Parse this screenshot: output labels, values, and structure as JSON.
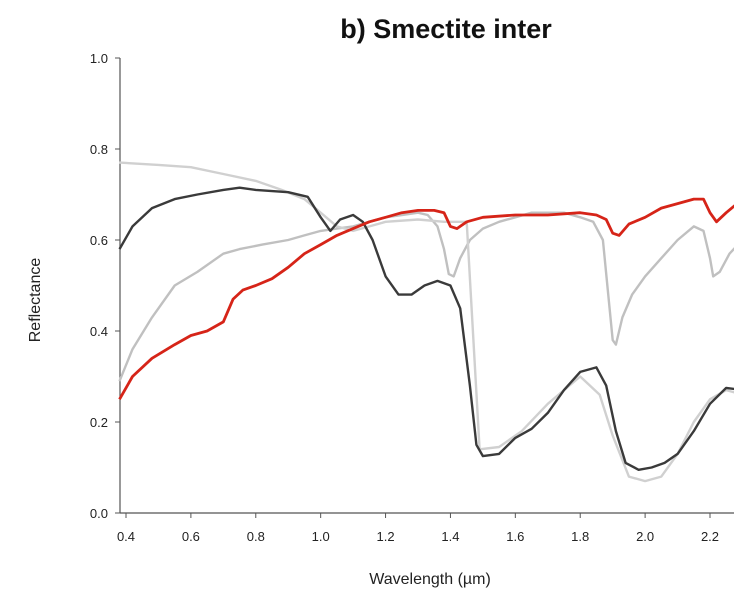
{
  "chart_data": {
    "type": "line",
    "title": "b) Smectite inter",
    "xlabel": "Wavelength (µm)",
    "ylabel": "Reflectance",
    "xlim": [
      0.38,
      2.35
    ],
    "ylim": [
      0.0,
      1.0
    ],
    "x_ticks": [
      "0.4",
      "0.6",
      "0.8",
      "1.0",
      "1.2",
      "1.4",
      "1.6",
      "1.8",
      "2.0",
      "2.2"
    ],
    "y_ticks": [
      "0.0",
      "0.2",
      "0.4",
      "0.6",
      "0.8",
      "1.0"
    ],
    "grid": false,
    "legend": "none",
    "series": [
      {
        "color": "#c0c0c0",
        "points": [
          [
            0.38,
            0.29
          ],
          [
            0.42,
            0.36
          ],
          [
            0.48,
            0.43
          ],
          [
            0.55,
            0.5
          ],
          [
            0.62,
            0.53
          ],
          [
            0.7,
            0.57
          ],
          [
            0.75,
            0.58
          ],
          [
            0.82,
            0.59
          ],
          [
            0.9,
            0.6
          ],
          [
            0.95,
            0.61
          ],
          [
            1.0,
            0.62
          ],
          [
            1.05,
            0.625
          ],
          [
            1.1,
            0.63
          ],
          [
            1.15,
            0.64
          ],
          [
            1.2,
            0.65
          ],
          [
            1.25,
            0.655
          ],
          [
            1.3,
            0.66
          ],
          [
            1.33,
            0.655
          ],
          [
            1.36,
            0.63
          ],
          [
            1.38,
            0.58
          ],
          [
            1.395,
            0.525
          ],
          [
            1.41,
            0.52
          ],
          [
            1.43,
            0.56
          ],
          [
            1.46,
            0.6
          ],
          [
            1.5,
            0.625
          ],
          [
            1.55,
            0.64
          ],
          [
            1.6,
            0.65
          ],
          [
            1.65,
            0.66
          ],
          [
            1.7,
            0.66
          ],
          [
            1.75,
            0.66
          ],
          [
            1.8,
            0.65
          ],
          [
            1.84,
            0.64
          ],
          [
            1.87,
            0.6
          ],
          [
            1.885,
            0.49
          ],
          [
            1.9,
            0.38
          ],
          [
            1.91,
            0.37
          ],
          [
            1.93,
            0.43
          ],
          [
            1.96,
            0.48
          ],
          [
            2.0,
            0.52
          ],
          [
            2.05,
            0.56
          ],
          [
            2.1,
            0.6
          ],
          [
            2.15,
            0.63
          ],
          [
            2.18,
            0.62
          ],
          [
            2.2,
            0.56
          ],
          [
            2.21,
            0.52
          ],
          [
            2.23,
            0.53
          ],
          [
            2.26,
            0.57
          ],
          [
            2.3,
            0.6
          ],
          [
            2.35,
            0.61
          ]
        ]
      },
      {
        "color": "#d0d0d0",
        "points": [
          [
            0.38,
            0.77
          ],
          [
            0.5,
            0.765
          ],
          [
            0.6,
            0.76
          ],
          [
            0.7,
            0.745
          ],
          [
            0.8,
            0.73
          ],
          [
            0.88,
            0.71
          ],
          [
            0.95,
            0.69
          ],
          [
            1.0,
            0.66
          ],
          [
            1.05,
            0.63
          ],
          [
            1.1,
            0.62
          ],
          [
            1.15,
            0.63
          ],
          [
            1.2,
            0.64
          ],
          [
            1.3,
            0.645
          ],
          [
            1.38,
            0.64
          ],
          [
            1.45,
            0.64
          ],
          [
            1.49,
            0.14
          ],
          [
            1.55,
            0.145
          ],
          [
            1.62,
            0.18
          ],
          [
            1.7,
            0.24
          ],
          [
            1.8,
            0.3
          ],
          [
            1.86,
            0.26
          ],
          [
            1.9,
            0.17
          ],
          [
            1.95,
            0.08
          ],
          [
            2.0,
            0.07
          ],
          [
            2.05,
            0.08
          ],
          [
            2.1,
            0.13
          ],
          [
            2.15,
            0.2
          ],
          [
            2.2,
            0.25
          ],
          [
            2.25,
            0.27
          ],
          [
            2.3,
            0.26
          ],
          [
            2.35,
            0.25
          ]
        ]
      },
      {
        "color": "#3a3a3a",
        "points": [
          [
            0.38,
            0.58
          ],
          [
            0.42,
            0.63
          ],
          [
            0.48,
            0.67
          ],
          [
            0.55,
            0.69
          ],
          [
            0.62,
            0.7
          ],
          [
            0.7,
            0.71
          ],
          [
            0.75,
            0.715
          ],
          [
            0.8,
            0.71
          ],
          [
            0.9,
            0.705
          ],
          [
            0.96,
            0.695
          ],
          [
            1.0,
            0.65
          ],
          [
            1.03,
            0.62
          ],
          [
            1.06,
            0.645
          ],
          [
            1.1,
            0.655
          ],
          [
            1.13,
            0.64
          ],
          [
            1.16,
            0.6
          ],
          [
            1.2,
            0.52
          ],
          [
            1.24,
            0.48
          ],
          [
            1.28,
            0.48
          ],
          [
            1.32,
            0.5
          ],
          [
            1.36,
            0.51
          ],
          [
            1.4,
            0.5
          ],
          [
            1.43,
            0.45
          ],
          [
            1.46,
            0.28
          ],
          [
            1.48,
            0.15
          ],
          [
            1.5,
            0.125
          ],
          [
            1.55,
            0.13
          ],
          [
            1.6,
            0.165
          ],
          [
            1.65,
            0.185
          ],
          [
            1.7,
            0.22
          ],
          [
            1.75,
            0.27
          ],
          [
            1.8,
            0.31
          ],
          [
            1.85,
            0.32
          ],
          [
            1.88,
            0.28
          ],
          [
            1.91,
            0.18
          ],
          [
            1.94,
            0.11
          ],
          [
            1.98,
            0.095
          ],
          [
            2.02,
            0.1
          ],
          [
            2.06,
            0.11
          ],
          [
            2.1,
            0.13
          ],
          [
            2.15,
            0.18
          ],
          [
            2.2,
            0.24
          ],
          [
            2.25,
            0.275
          ],
          [
            2.3,
            0.27
          ],
          [
            2.35,
            0.25
          ]
        ]
      },
      {
        "color": "#d62418",
        "points": [
          [
            0.38,
            0.25
          ],
          [
            0.42,
            0.3
          ],
          [
            0.48,
            0.34
          ],
          [
            0.55,
            0.37
          ],
          [
            0.6,
            0.39
          ],
          [
            0.65,
            0.4
          ],
          [
            0.7,
            0.42
          ],
          [
            0.73,
            0.47
          ],
          [
            0.76,
            0.49
          ],
          [
            0.8,
            0.5
          ],
          [
            0.85,
            0.515
          ],
          [
            0.9,
            0.54
          ],
          [
            0.95,
            0.57
          ],
          [
            1.0,
            0.59
          ],
          [
            1.05,
            0.61
          ],
          [
            1.1,
            0.625
          ],
          [
            1.15,
            0.64
          ],
          [
            1.2,
            0.65
          ],
          [
            1.25,
            0.66
          ],
          [
            1.3,
            0.665
          ],
          [
            1.35,
            0.665
          ],
          [
            1.38,
            0.66
          ],
          [
            1.4,
            0.63
          ],
          [
            1.42,
            0.625
          ],
          [
            1.45,
            0.64
          ],
          [
            1.5,
            0.65
          ],
          [
            1.6,
            0.655
          ],
          [
            1.7,
            0.655
          ],
          [
            1.8,
            0.66
          ],
          [
            1.85,
            0.655
          ],
          [
            1.88,
            0.645
          ],
          [
            1.9,
            0.615
          ],
          [
            1.92,
            0.61
          ],
          [
            1.95,
            0.635
          ],
          [
            2.0,
            0.65
          ],
          [
            2.05,
            0.67
          ],
          [
            2.1,
            0.68
          ],
          [
            2.15,
            0.69
          ],
          [
            2.18,
            0.69
          ],
          [
            2.2,
            0.66
          ],
          [
            2.22,
            0.64
          ],
          [
            2.25,
            0.66
          ],
          [
            2.3,
            0.69
          ],
          [
            2.35,
            0.71
          ]
        ]
      }
    ]
  }
}
